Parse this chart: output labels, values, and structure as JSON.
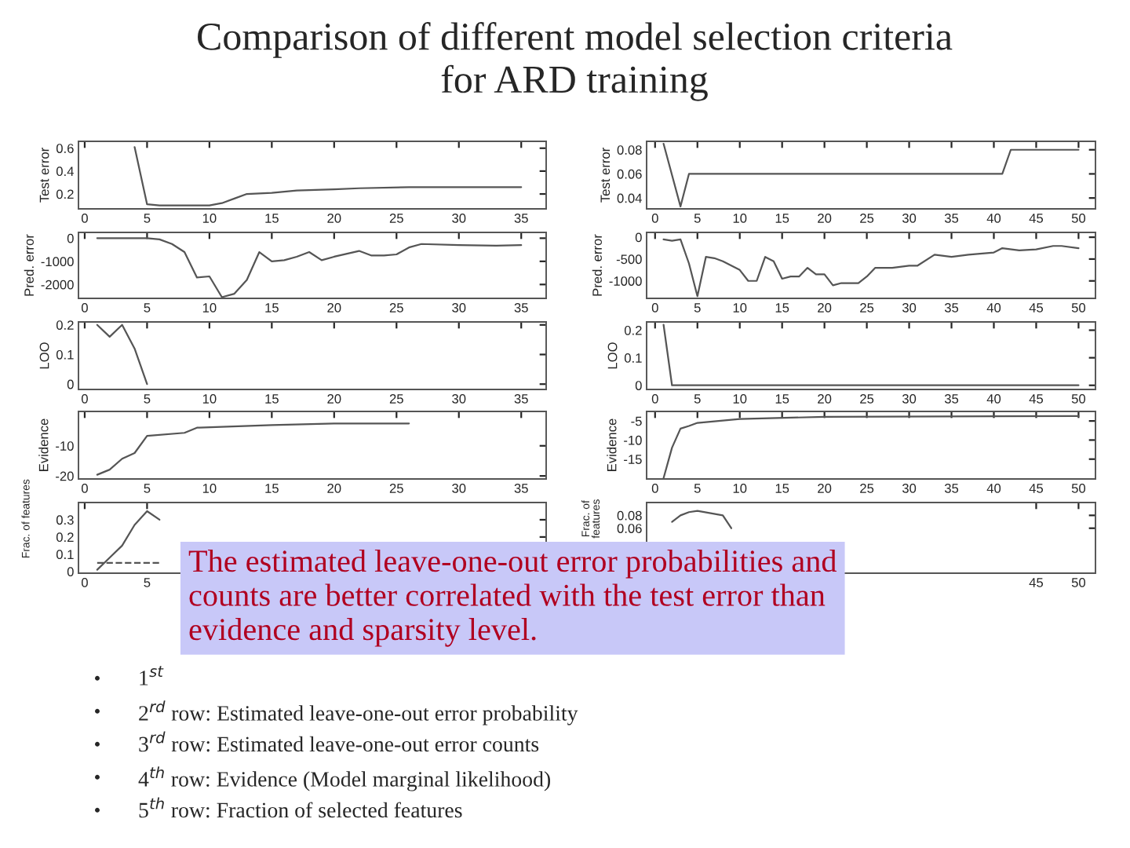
{
  "chart_data": [
    {
      "type": "other",
      "title": "Comparison of different model selection criteria\nfor ARD training",
      "annotations": [
        "The estimated leave-one-out error probabilities and\ncounts are better correlated with the test error than\nevidence and sparsity level.",
        "•",
        "1$^{st}$",
        "•",
        "2$^{rd}$ row: Estimated leave-one-out error probability",
        "•",
        "3$^{rd}$ row: Estimated leave-one-out error counts",
        "•",
        "4$^{th}$ row: Evidence (Model marginal likelihood)",
        "•",
        "5$^{th}$ row: Fraction of selected features"
      ]
    },
    {
      "type": "line",
      "ylabel": "Test error",
      "xlim": [
        -0.5,
        37
      ],
      "xticks": [
        0,
        5,
        10,
        15,
        20,
        25,
        30,
        35
      ],
      "ylim": [
        0.07,
        0.66
      ],
      "yticks": [
        0.2,
        0.4,
        0.6
      ],
      "series": [
        {
          "color": "#555555",
          "x": [
            4,
            5,
            6,
            8,
            10,
            11,
            12,
            13,
            15,
            17,
            20,
            22,
            26,
            35
          ],
          "values": [
            0.61,
            0.11,
            0.1,
            0.1,
            0.1,
            0.12,
            0.16,
            0.2,
            0.21,
            0.23,
            0.24,
            0.25,
            0.26,
            0.26
          ]
        }
      ]
    },
    {
      "type": "line",
      "ylabel": "Test error",
      "xlim": [
        -1,
        52
      ],
      "xticks": [
        0,
        5,
        10,
        15,
        20,
        25,
        30,
        35,
        40,
        45,
        50
      ],
      "ylim": [
        0.031,
        0.087
      ],
      "yticks": [
        0.04,
        0.06,
        0.08
      ],
      "series": [
        {
          "color": "#555555",
          "x": [
            1,
            3,
            4,
            41,
            42,
            50
          ],
          "values": [
            0.085,
            0.033,
            0.06,
            0.06,
            0.08,
            0.08
          ]
        }
      ]
    },
    {
      "type": "line",
      "ylabel": "Pred. error",
      "xlim": [
        -0.5,
        37
      ],
      "xticks": [
        0,
        5,
        10,
        15,
        20,
        25,
        30,
        35
      ],
      "ylim": [
        -2600,
        250
      ],
      "yticks": [
        -2000,
        -1000,
        0
      ],
      "series": [
        {
          "color": "#555555",
          "x": [
            1,
            5,
            6,
            7,
            8,
            9,
            10,
            11,
            12,
            13,
            14,
            15,
            16,
            17,
            18,
            19,
            20,
            22,
            23,
            24,
            25,
            26,
            27,
            30,
            33,
            35
          ],
          "values": [
            0,
            0,
            -50,
            -250,
            -600,
            -1700,
            -1650,
            -2550,
            -2400,
            -1800,
            -600,
            -1000,
            -950,
            -800,
            -600,
            -950,
            -800,
            -550,
            -750,
            -750,
            -700,
            -400,
            -250,
            -300,
            -320,
            -300
          ]
        }
      ]
    },
    {
      "type": "line",
      "ylabel": "Pred. error",
      "xlim": [
        -1,
        52
      ],
      "xticks": [
        0,
        5,
        10,
        15,
        20,
        25,
        30,
        35,
        40,
        45,
        50
      ],
      "ylim": [
        -1400,
        110
      ],
      "yticks": [
        -1000,
        -500,
        0
      ],
      "series": [
        {
          "color": "#555555",
          "x": [
            1,
            2,
            3,
            4,
            5,
            6,
            7,
            8,
            9,
            10,
            11,
            12,
            13,
            14,
            15,
            16,
            17,
            18,
            19,
            20,
            21,
            22,
            24,
            25,
            26,
            28,
            30,
            31,
            33,
            35,
            37,
            40,
            41,
            43,
            45,
            47,
            48,
            50
          ],
          "values": [
            -50,
            -80,
            -50,
            -600,
            -1350,
            -450,
            -480,
            -550,
            -650,
            -750,
            -1000,
            -1000,
            -450,
            -550,
            -950,
            -900,
            -900,
            -700,
            -850,
            -850,
            -1100,
            -1050,
            -1050,
            -900,
            -700,
            -700,
            -650,
            -650,
            -400,
            -450,
            -400,
            -350,
            -250,
            -300,
            -280,
            -200,
            -200,
            -250
          ]
        }
      ]
    },
    {
      "type": "line",
      "ylabel": "LOO",
      "xlim": [
        -0.5,
        37
      ],
      "xticks": [
        0,
        5,
        10,
        15,
        20,
        25,
        30,
        35
      ],
      "ylim": [
        -0.018,
        0.21
      ],
      "yticks": [
        0,
        0.1,
        0.2
      ],
      "series": [
        {
          "color": "#555555",
          "x": [
            1,
            2,
            3,
            4,
            5
          ],
          "values": [
            0.2,
            0.16,
            0.2,
            0.12,
            0.0
          ]
        }
      ]
    },
    {
      "type": "line",
      "ylabel": "LOO",
      "xlim": [
        -1,
        52
      ],
      "xticks": [
        0,
        5,
        10,
        15,
        20,
        25,
        30,
        35,
        40,
        45,
        50
      ],
      "ylim": [
        -0.015,
        0.23
      ],
      "yticks": [
        0,
        0.1,
        0.2
      ],
      "series": [
        {
          "color": "#555555",
          "x": [
            1,
            2,
            50
          ],
          "values": [
            0.22,
            0.0,
            0.0
          ]
        }
      ]
    },
    {
      "type": "line",
      "ylabel": "Evidence",
      "xlim": [
        -0.5,
        37
      ],
      "xticks": [
        0,
        5,
        10,
        15,
        20,
        25,
        30,
        35
      ],
      "ylim": [
        -21,
        1.4
      ],
      "yticks": [
        -20,
        -10
      ],
      "series": [
        {
          "color": "#555555",
          "x": [
            1,
            2,
            3,
            4,
            5,
            8,
            9,
            15,
            20,
            26
          ],
          "values": [
            -19.6,
            -17.9,
            -14.3,
            -12.4,
            -6.7,
            -5.7,
            -4,
            -3.1,
            -2.6,
            -2.6
          ]
        }
      ]
    },
    {
      "type": "line",
      "ylabel": "Evidence",
      "xlim": [
        -1,
        52
      ],
      "xticks": [
        0,
        5,
        10,
        15,
        20,
        25,
        30,
        35,
        40,
        45,
        50
      ],
      "ylim": [
        -20.2,
        -2.5
      ],
      "yticks": [
        -15,
        -10,
        -5
      ],
      "series": [
        {
          "color": "#555555",
          "x": [
            1,
            2,
            3,
            4,
            5,
            10,
            20,
            50
          ],
          "values": [
            -20,
            -12,
            -7,
            -6.3,
            -5.5,
            -4.5,
            -3.9,
            -3.7
          ]
        }
      ]
    },
    {
      "type": "line",
      "ylabel": "Frac. of features",
      "xlim": [
        -0.5,
        37
      ],
      "xticks": [
        0,
        5
      ],
      "ylim": [
        -0.01,
        0.4
      ],
      "yticks": [
        0,
        0.1,
        0.2,
        0.3
      ],
      "series": [
        {
          "color": "#555555",
          "x": [
            1,
            2,
            3,
            4,
            5,
            6
          ],
          "values": [
            0.01,
            0.08,
            0.15,
            0.27,
            0.35,
            0.3
          ]
        },
        {
          "color": "#555555",
          "line_style": "dashed",
          "x": [
            1,
            6
          ],
          "values": [
            0.05,
            0.05
          ]
        }
      ]
    },
    {
      "type": "line",
      "ylabel": "Frac. of\nfeatures",
      "xlim": [
        -1,
        52
      ],
      "xticks": [
        45,
        50
      ],
      "ylim": [
        -0.01,
        0.1
      ],
      "yticks": [
        0.06,
        0.08
      ],
      "series": [
        {
          "color": "#555555",
          "x": [
            2,
            3,
            4,
            5,
            8,
            9
          ],
          "values": [
            0.07,
            0.08,
            0.085,
            0.087,
            0.08,
            0.06
          ]
        }
      ]
    }
  ]
}
